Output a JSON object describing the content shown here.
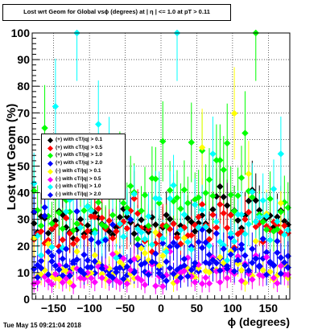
{
  "chart_data": {
    "type": "scatter",
    "title": "Lost wrt Geom for Global vsϕ (degrees) at | η | <= 1.0 at pT > 0.11",
    "xlabel": "ϕ (degrees)",
    "ylabel": "Lost wrt Geom (%)",
    "xlim": [
      -180,
      180
    ],
    "ylim": [
      0,
      100
    ],
    "xticks": [
      -150,
      -100,
      -50,
      0,
      50,
      100,
      150
    ],
    "xtick_labels": [
      "−150",
      "−100",
      "−50",
      "0",
      "50",
      "100",
      "150"
    ],
    "yticks": [
      0,
      10,
      20,
      30,
      40,
      50,
      60,
      70,
      80,
      90,
      100
    ],
    "grid": true,
    "legend_position": "left-middle",
    "bins": 72,
    "series": [
      {
        "name": "(+) with cT/|q| > 0.1",
        "color": "#000000",
        "values": [
          28.5,
          25.2,
          31.1,
          30.4,
          24.8,
          26.3,
          29.5,
          33.1,
          31.7,
          27.0,
          25.2,
          22.8,
          26.2,
          30.0,
          24.5,
          27.7,
          25.3,
          32.5,
          30.6,
          28.3,
          26.8,
          25.5,
          24.2,
          26.9,
          30.8,
          33.9,
          31.0,
          28.8,
          24.6,
          27.4,
          29.8,
          26.7,
          25.3,
          30.8,
          28.0,
          24.3,
          26.9,
          31.6,
          30.1,
          28.4,
          24.5,
          27.6,
          26.9,
          30.4,
          29.0,
          25.5,
          28.6,
          31.5,
          28.4,
          25.7,
          33.7,
          38.6,
          42.3,
          38.4,
          35.2,
          31.7,
          33.3,
          29.6,
          26.7,
          31.4,
          36.9,
          41.0,
          37.1,
          33.4,
          29.2,
          30.5,
          31.4,
          27.1,
          30.9,
          33.3,
          29.3,
          28.0
        ]
      },
      {
        "name": "(+) with cT/|q| > 0.5",
        "color": "#ff0000",
        "values": [
          22.5,
          24.5,
          25.5,
          21.0,
          22.2,
          26.5,
          27.8,
          19.8,
          22.3,
          30.5,
          24.7,
          20.8,
          22.3,
          28.0,
          23.4,
          25.6,
          31.1,
          30.9,
          34.0,
          30.5,
          26.4,
          29.5,
          22.9,
          25.5,
          27.8,
          29.1,
          26.6,
          33.2,
          37.8,
          32.2,
          26.7,
          21.8,
          26.4,
          17.8,
          20.9,
          24.1,
          27.7,
          27.7,
          26.3,
          28.3,
          23.2,
          20.8,
          26.9,
          23.9,
          24.0,
          27.8,
          30.9,
          35.6,
          27.7,
          22.5,
          31.7,
          26.9,
          35.6,
          32.3,
          26.8,
          31.6,
          19.4,
          24.5,
          25.4,
          30.0,
          32.7,
          40.3,
          27.2,
          28.5,
          21.5,
          27.4,
          26.1,
          29.0,
          27.8,
          25.0,
          27.6,
          24.8
        ]
      },
      {
        "name": "(+) with cT/|q| > 1.0",
        "color": "#00ff00",
        "values": [
          40.7,
          33.4,
          27.6,
          64.3,
          31.2,
          28.4,
          38.2,
          32.5,
          26.5,
          37.2,
          32.8,
          25.9,
          28.4,
          47.5,
          33.3,
          34.9,
          33.5,
          25.9,
          36.4,
          28.0,
          27.3,
          45.9,
          31.6,
          39.4,
          50.0,
          36.1,
          34.3,
          42.5,
          40.2,
          22.6,
          33.2,
          39.1,
          27.6,
          45.4,
          45.2,
          36.1,
          59.3,
          27.4,
          40.9,
          36.8,
          38.1,
          34.0,
          41.1,
          36.1,
          58.9,
          37.4,
          38.2,
          55.8,
          39.9,
          44.9,
          38.8,
          52.2,
          52.2,
          48.6,
          58.6,
          39.2,
          33.1,
          38.9,
          45.6,
          62.4,
          40.6,
          38.3,
          100.0,
          31.8,
          29.0,
          26.1,
          37.7,
          25.5,
          26.3,
          32.8,
          36.4,
          34.4
        ]
      },
      {
        "name": "(+) with cT/|q| > 2.0",
        "color": "#0000ff",
        "values": [
          11.4,
          12.8,
          14.4,
          34.5,
          17.8,
          14.2,
          8.8,
          18.0,
          8.9,
          12.5,
          10.9,
          13.3,
          33.0,
          10.6,
          16.7,
          12.0,
          22.4,
          9.8,
          13.4,
          12.5,
          11.0,
          10.6,
          28.0,
          11.5,
          16.0,
          11.7,
          9.0,
          14.3,
          10.6,
          15.0,
          19.8,
          10.3,
          9.8,
          14.0,
          13.4,
          11.3,
          21.0,
          14.1,
          19.7,
          21.2,
          11.0,
          12.0,
          12.6,
          11.5,
          19.8,
          12.3,
          10.5,
          26.1,
          13.8,
          16.7,
          11.1,
          13.6,
          15.3,
          13.0,
          12.5,
          23.3,
          18.7,
          14.1,
          18.9,
          16.4,
          10.1,
          13.7,
          15.4,
          12.6,
          15.3,
          17.6,
          14.0,
          12.8,
          17.5,
          15.6,
          13.0,
          11.9
        ]
      },
      {
        "name": "(-) with cT/|q| > 0.1",
        "color": "#ffff00",
        "values": [
          22.9,
          8.7,
          9.3,
          10.9,
          20.8,
          8.7,
          7.8,
          7.6,
          11.1,
          10.5,
          6.3,
          11.6,
          17.9,
          7.8,
          8.3,
          9.1,
          9.8,
          16.5,
          13.6,
          9.5,
          7.6,
          11.6,
          9.2,
          17.3,
          13.9,
          12.6,
          6.9,
          9.5,
          7.9,
          15.6,
          19.1,
          17.3,
          14.6,
          20.4,
          25.1,
          12.6,
          16.3,
          18.6,
          11.6,
          6.1,
          8.2,
          9.7,
          23.0,
          11.4,
          9.5,
          8.2,
          11.7,
          57.0,
          10.6,
          10.1,
          14.7,
          11.1,
          15.8,
          13.7,
          8.0,
          18.0,
          69.8,
          13.3,
          10.9,
          6.2,
          47.1,
          8.8,
          21.8,
          9.0,
          10.9,
          32.1,
          10.3,
          7.4,
          8.9,
          36.1,
          13.2,
          8.0
        ]
      },
      {
        "name": "(-) with cT/|q| > 0.5",
        "color": "#ff00ff",
        "values": [
          5.8,
          6.4,
          16.3,
          8.4,
          6.9,
          5.6,
          9.4,
          12.7,
          6.3,
          7.7,
          9.8,
          5.0,
          11.5,
          8.0,
          7.7,
          9.9,
          7.9,
          6.4,
          12.2,
          8.0,
          12.0,
          6.7,
          16.9,
          7.1,
          6.2,
          15.3,
          5.8,
          10.9,
          15.1,
          8.0,
          7.1,
          5.4,
          9.8,
          13.0,
          5.0,
          8.6,
          4.8,
          9.0,
          17.9,
          9.7,
          6.7,
          10.0,
          10.6,
          15.6,
          8.5,
          6.4,
          13.0,
          5.8,
          8.1,
          5.9,
          15.7,
          10.5,
          6.4,
          11.1,
          7.9,
          10.6,
          9.5,
          16.1,
          6.9,
          13.4,
          9.5,
          7.4,
          16.4,
          9.1,
          8.7,
          15.8,
          13.6,
          8.0,
          6.0,
          12.5,
          9.3,
          9.2
        ]
      },
      {
        "name": "(-) with cT/|q| > 1.0",
        "color": "#00ffff",
        "values": [
          43.5,
          23.8,
          16.5,
          39.3,
          44.0,
          19.6,
          72.4,
          40.1,
          19.3,
          32.9,
          37.3,
          44.3,
          100.0,
          26.9,
          38.5,
          34.8,
          33.2,
          24.8,
          65.7,
          21.9,
          22.8,
          54.5,
          46.1,
          15.5,
          28.3,
          23.5,
          32.5,
          30.0,
          39.5,
          26.4,
          25.1,
          22.6,
          31.1,
          20.5,
          37.9,
          37.7,
          22.8,
          17.8,
          37.8,
          42.8,
          100.0,
          26.0,
          31.8,
          21.5,
          18.7,
          35.5,
          27.0,
          33.6,
          27.2,
          20.1,
          54.6,
          29.1,
          21.6,
          20.3,
          14.6,
          24.7,
          21.7,
          31.8,
          31.8,
          24.5,
          28.2,
          40.3,
          29.1,
          30.8,
          37.1,
          31.2,
          22.2,
          41.4,
          29.2,
          54.6,
          24.2,
          26.0
        ]
      },
      {
        "name": "(-) with cT/|q| > 2.0",
        "color": "#0000ff",
        "values": [
          32.7,
          8.2,
          11.7,
          31.3,
          9.3,
          16.3,
          12.6,
          11.1,
          15.2,
          18.9,
          8.8,
          14.2,
          14.9,
          11.0,
          9.5,
          14.6,
          12.0,
          14.2,
          21.3,
          11.6,
          22.2,
          9.1,
          8.1,
          10.2,
          11.8,
          7.6,
          12.2,
          29.9,
          10.0,
          20.4,
          13.0,
          13.6,
          9.2,
          14.0,
          17.1,
          9.8,
          8.5,
          6.9,
          11.7,
          9.5,
          19.9,
          8.1,
          15.1,
          8.6,
          11.0,
          13.6,
          21.5,
          19.3,
          21.3,
          13.4,
          14.7,
          24.7,
          10.8,
          18.9,
          11.5,
          16.8,
          10.5,
          14.7,
          20.5,
          12.7,
          10.8,
          18.9,
          15.2,
          12.2,
          22.7,
          9.2,
          13.7,
          12.6,
          21.8,
          9.6,
          13.8,
          16.2
        ]
      }
    ]
  },
  "legend": [
    {
      "label": "(+) with cT/|q| > 0.1",
      "color": "#000000"
    },
    {
      "label": "(+) with cT/|q| > 0.5",
      "color": "#ff0000"
    },
    {
      "label": "(+) with cT/|q| > 1.0",
      "color": "#00ff00"
    },
    {
      "label": "(+) with cT/|q| > 2.0",
      "color": "#0000ff"
    },
    {
      "label": "(-) with cT/|q| > 0.1",
      "color": "#ffff00"
    },
    {
      "label": "(-) with cT/|q| > 0.5",
      "color": "#ff00ff"
    },
    {
      "label": "(-) with cT/|q| > 1.0",
      "color": "#00ffff"
    },
    {
      "label": "(-) with cT/|q| > 2.0",
      "color": "#0000ff"
    }
  ],
  "footer": "Tue May 15 09:21:04 2018"
}
